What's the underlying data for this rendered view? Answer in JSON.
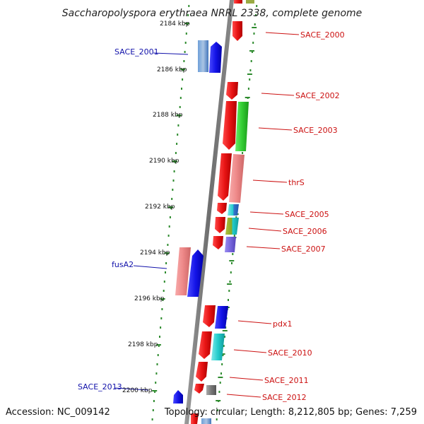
{
  "title": "Saccharopolyspora erythraea NRRL 2338, complete genome",
  "footer": {
    "accession": "Accession: NC_009142",
    "summary": "Topology: circular; Length: 8,212,805 bp; Genes: 7,259"
  },
  "axis": {
    "ticks": [
      "2184 kbp",
      "2186 kbp",
      "2188 kbp",
      "2190 kbp",
      "2192 kbp",
      "2194 kbp",
      "2196 kbp",
      "2198 kbp",
      "2200 kbp"
    ]
  },
  "labels": {
    "left": [
      "SACE_2001",
      "fusA2",
      "SACE_2013"
    ],
    "right": [
      "SACE_2000",
      "SACE_2002",
      "SACE_2003",
      "thrS",
      "SACE_2005",
      "SACE_2006",
      "SACE_2007",
      "pdx1",
      "SACE_2010",
      "SACE_2011",
      "SACE_2012"
    ]
  },
  "colors": {
    "backbone": "#808080",
    "dots": "#2e8b2e",
    "left_label": "#1111aa",
    "right_label": "#cc1111",
    "cds_forward": "#e81414",
    "cds_reverse": "#1414e8",
    "pink": "#ee8888",
    "green": "#33cc33",
    "cyan": "#22cccc",
    "purple": "#7766dd",
    "olive": "#88aa22",
    "gray": "#888888",
    "steelblue": "#5588cc"
  }
}
